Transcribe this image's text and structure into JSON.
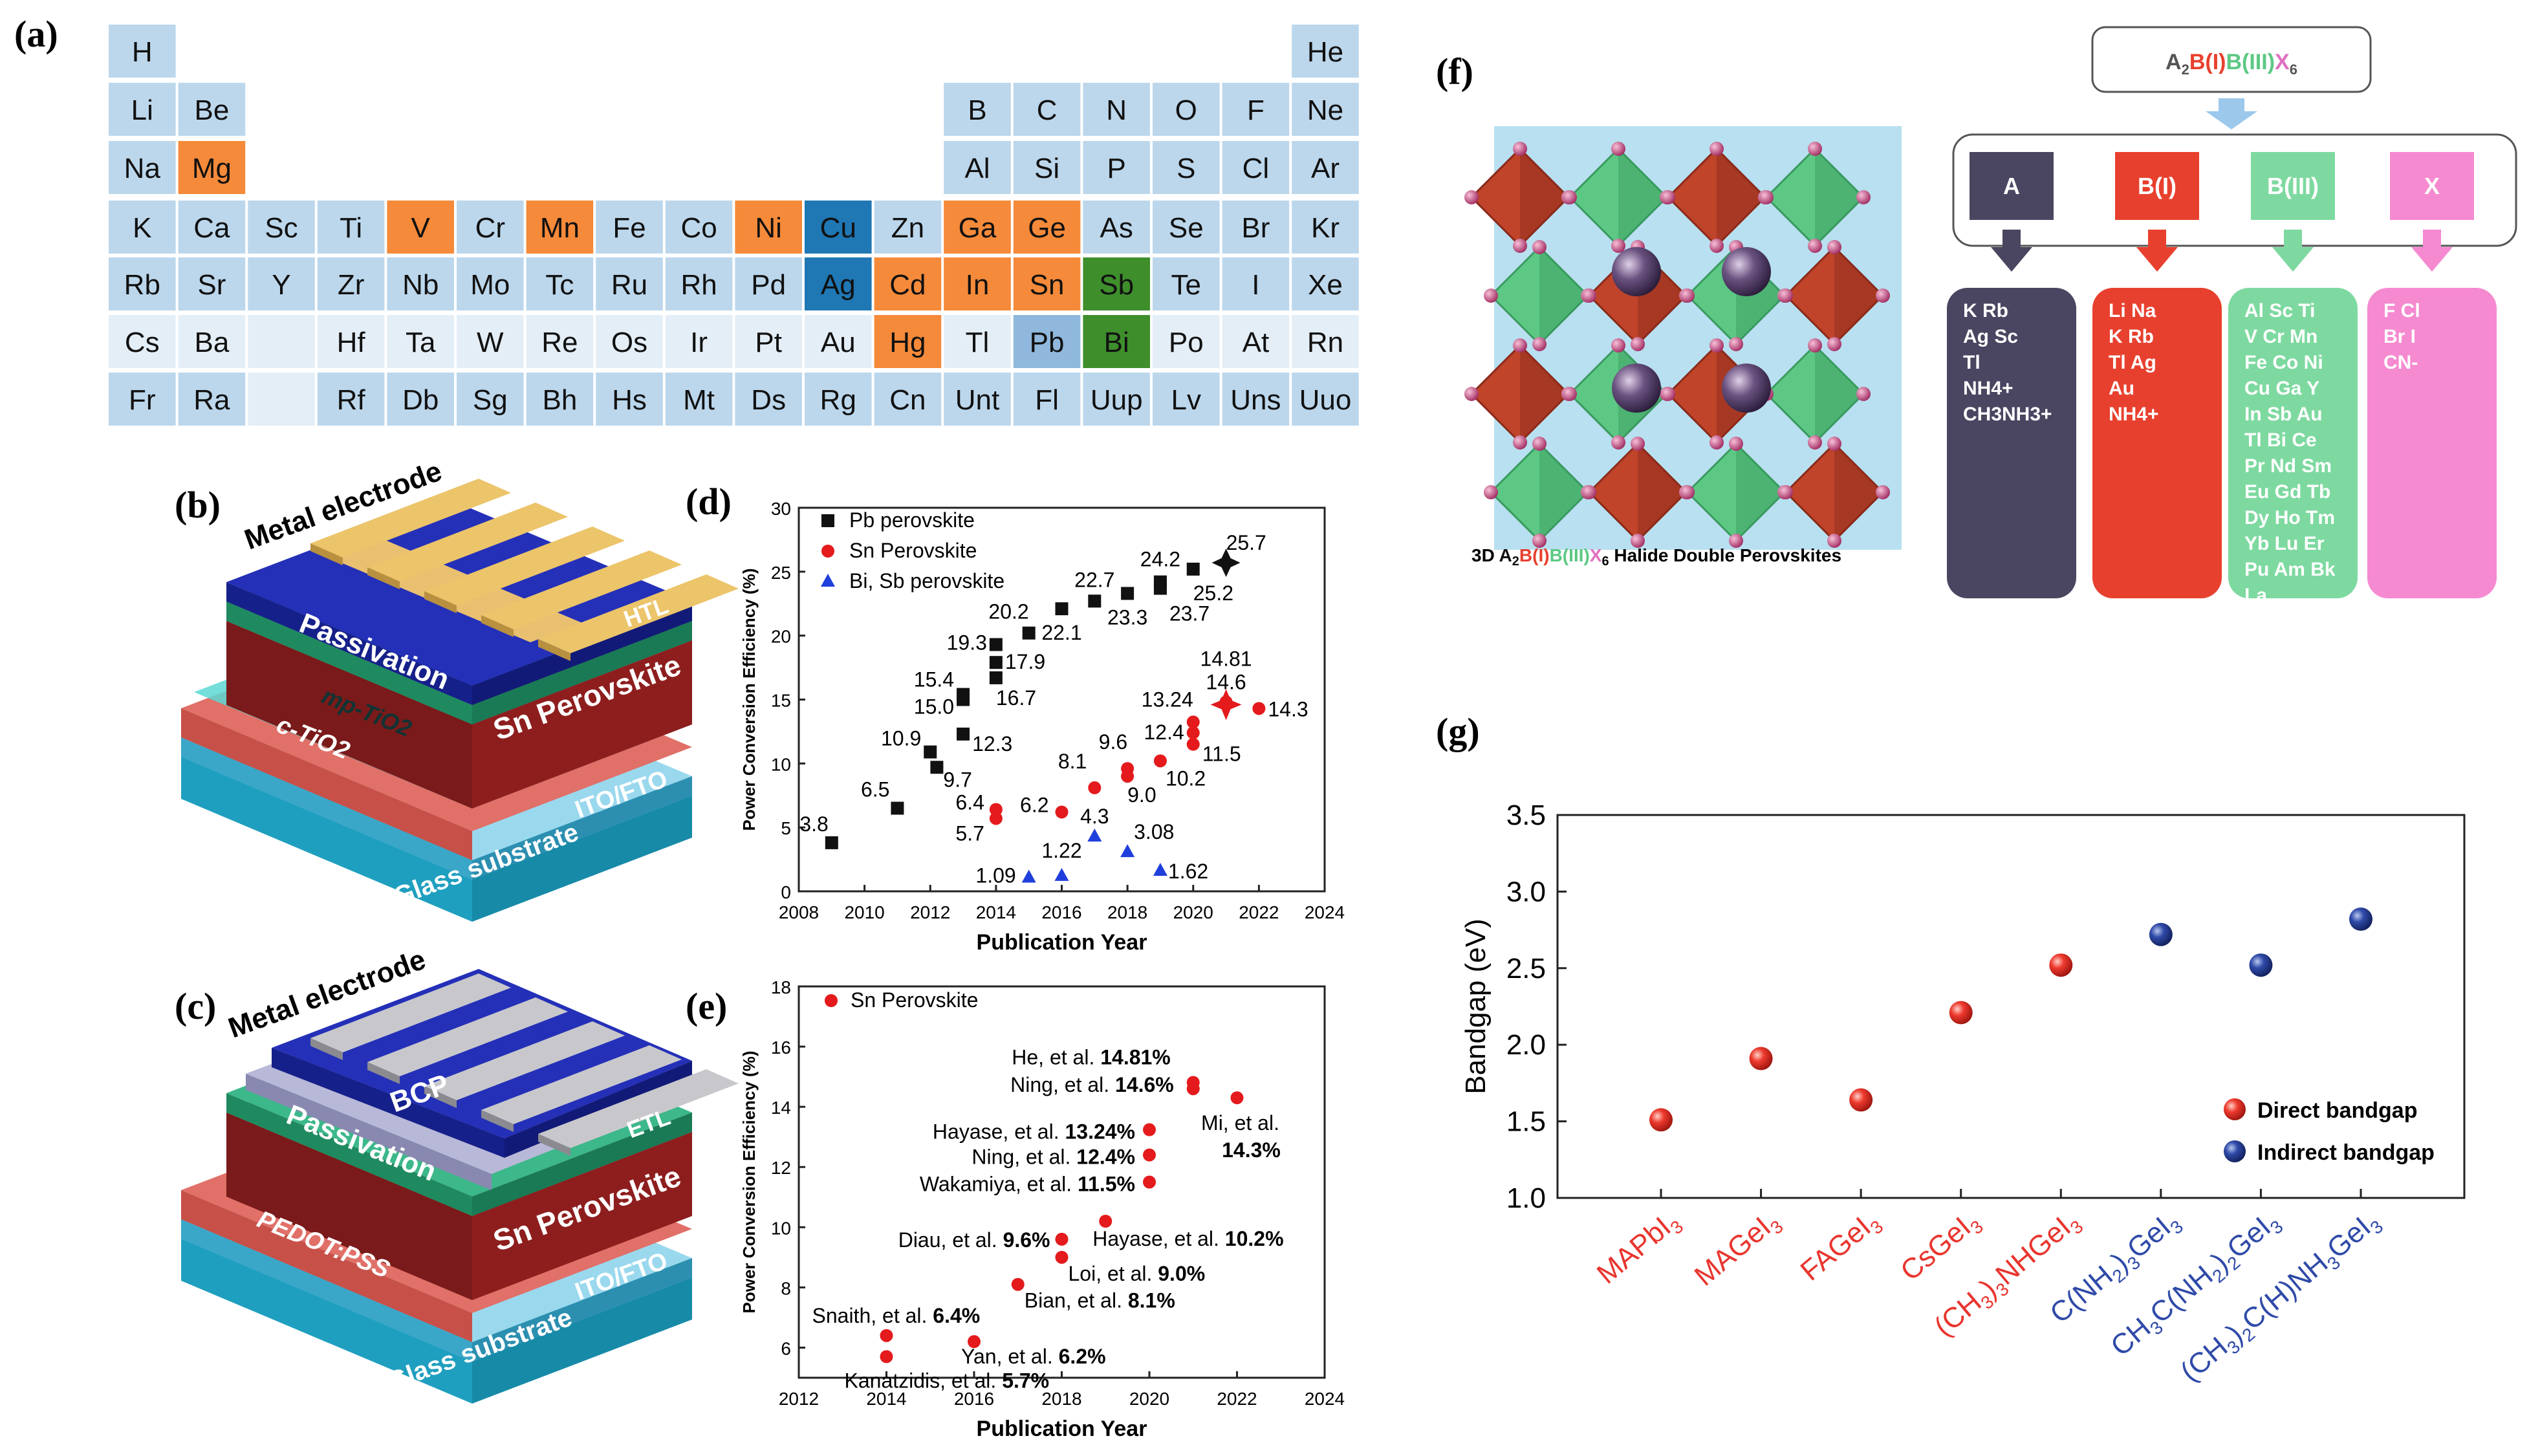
{
  "panel_labels": {
    "a": "(a)",
    "b": "(b)",
    "c": "(c)",
    "d": "(d)",
    "e": "(e)",
    "f": "(f)",
    "g": "(g)"
  },
  "periodic_table": {
    "rows": [
      [
        "H",
        "",
        "",
        "",
        "",
        "",
        "",
        "",
        "",
        "",
        "",
        "",
        "",
        "",
        "",
        "",
        "",
        "He"
      ],
      [
        "Li",
        "Be",
        "",
        "",
        "",
        "",
        "",
        "",
        "",
        "",
        "",
        "",
        "B",
        "C",
        "N",
        "O",
        "F",
        "Ne"
      ],
      [
        "Na",
        "Mg",
        "",
        "",
        "",
        "",
        "",
        "",
        "",
        "",
        "",
        "",
        "Al",
        "Si",
        "P",
        "S",
        "Cl",
        "Ar"
      ],
      [
        "K",
        "Ca",
        "Sc",
        "Ti",
        "V",
        "Cr",
        "Mn",
        "Fe",
        "Co",
        "Ni",
        "Cu",
        "Zn",
        "Ga",
        "Ge",
        "As",
        "Se",
        "Br",
        "Kr"
      ],
      [
        "Rb",
        "Sr",
        "Y",
        "Zr",
        "Nb",
        "Mo",
        "Tc",
        "Ru",
        "Rh",
        "Pd",
        "Ag",
        "Cd",
        "In",
        "Sn",
        "Sb",
        "Te",
        "I",
        "Xe"
      ],
      [
        "Cs",
        "Ba",
        "",
        "Hf",
        "Ta",
        "W",
        "Re",
        "Os",
        "Ir",
        "Pt",
        "Au",
        "Hg",
        "Tl",
        "Pb",
        "Bi",
        "Po",
        "At",
        "Rn"
      ],
      [
        "Fr",
        "Ra",
        "",
        "Rf",
        "Db",
        "Sg",
        "Bh",
        "Hs",
        "Mt",
        "Ds",
        "Rg",
        "Cn",
        "Unt",
        "Fl",
        "Uup",
        "Lv",
        "Uns",
        "Uuo"
      ]
    ],
    "empty_light_cells": [
      "5-2",
      "6-2"
    ],
    "highlight": {
      "orange": [
        "Mg",
        "V",
        "Mn",
        "Ni",
        "Ga",
        "Ge",
        "Cd",
        "In",
        "Sn",
        "Hg"
      ],
      "blue": [
        "Cu",
        "Ag"
      ],
      "green": [
        "Sb",
        "Bi"
      ],
      "pale": [
        "Cs",
        "Ba",
        "Hf",
        "Ta",
        "W",
        "Re",
        "Os",
        "Ir",
        "Pt",
        "Au",
        "Tl",
        "Po",
        "At",
        "Rn"
      ],
      "pb": [
        "Pb"
      ]
    },
    "colors": {
      "base": "#bcd7ec",
      "pale": "#e4eef7",
      "orange": "#f58a3a",
      "blue": "#1f77b4",
      "green": "#3e8e2c",
      "pb": "#8fb8dc"
    }
  },
  "device_b": {
    "layers": [
      "Metal electrode",
      "HTL",
      "Passivation",
      "Sn Perovskite",
      "mp-TiO2",
      "c-TiO2",
      "ITO/FTO",
      "Glass substrate"
    ]
  },
  "device_c": {
    "layers": [
      "Metal electrode",
      "BCP",
      "ETL",
      "Passivation",
      "Sn Perovskite",
      "PEDOT:PSS",
      "ITO/FTO",
      "Glass substrate"
    ]
  },
  "chart_data": [
    {
      "panel": "d",
      "type": "scatter",
      "xlabel": "Publication Year",
      "ylabel": "Power Conversion Efficiency (%)",
      "xlim": [
        2008,
        2024
      ],
      "ylim": [
        0,
        30
      ],
      "xticks": [
        2008,
        2010,
        2012,
        2014,
        2016,
        2018,
        2020,
        2022,
        2024
      ],
      "yticks": [
        0,
        5,
        10,
        15,
        20,
        25,
        30
      ],
      "legend_position": "top-left",
      "series": [
        {
          "name": "Pb perovskite",
          "color": "#111111",
          "marker": "square",
          "points": [
            {
              "x": 2009,
              "y": 3.8,
              "label": "3.8"
            },
            {
              "x": 2011,
              "y": 6.5,
              "label": "6.5"
            },
            {
              "x": 2012,
              "y": 10.9,
              "label": "10.9"
            },
            {
              "x": 2012.2,
              "y": 9.7,
              "label": "9.7"
            },
            {
              "x": 2013,
              "y": 15.4,
              "label": "15.4"
            },
            {
              "x": 2013,
              "y": 15.0,
              "label": "15.0"
            },
            {
              "x": 2013,
              "y": 12.3,
              "label": "12.3"
            },
            {
              "x": 2014,
              "y": 19.3,
              "label": "19.3"
            },
            {
              "x": 2014,
              "y": 17.9,
              "label": "17.9"
            },
            {
              "x": 2014,
              "y": 16.7,
              "label": "16.7"
            },
            {
              "x": 2015,
              "y": 20.2,
              "label": "20.2"
            },
            {
              "x": 2016,
              "y": 22.1,
              "label": "22.1"
            },
            {
              "x": 2017,
              "y": 22.7,
              "label": "22.7"
            },
            {
              "x": 2018,
              "y": 23.3,
              "label": "23.3"
            },
            {
              "x": 2019,
              "y": 24.2,
              "label": "24.2"
            },
            {
              "x": 2019,
              "y": 23.7,
              "label": "23.7"
            },
            {
              "x": 2020,
              "y": 25.2,
              "label": "25.2"
            },
            {
              "x": 2021,
              "y": 25.7,
              "label": "25.7"
            }
          ]
        },
        {
          "name": "Sn Perovskite",
          "color": "#e41a1c",
          "marker": "circle",
          "points": [
            {
              "x": 2014,
              "y": 6.4,
              "label": "6.4"
            },
            {
              "x": 2014,
              "y": 5.7,
              "label": "5.7"
            },
            {
              "x": 2016,
              "y": 6.2,
              "label": "6.2"
            },
            {
              "x": 2017,
              "y": 8.1,
              "label": "8.1"
            },
            {
              "x": 2018,
              "y": 9.6,
              "label": "9.6"
            },
            {
              "x": 2018,
              "y": 9.0,
              "label": "9.0"
            },
            {
              "x": 2019,
              "y": 10.2,
              "label": "10.2"
            },
            {
              "x": 2020,
              "y": 13.24,
              "label": "13.24"
            },
            {
              "x": 2020,
              "y": 12.4,
              "label": "12.4"
            },
            {
              "x": 2020,
              "y": 11.5,
              "label": "11.5"
            },
            {
              "x": 2021,
              "y": 14.81,
              "label": "14.81"
            },
            {
              "x": 2021,
              "y": 14.6,
              "label": "14.6"
            },
            {
              "x": 2022,
              "y": 14.3,
              "label": "14.3"
            }
          ]
        },
        {
          "name": "Bi, Sb perovskite",
          "color": "#1f3fdc",
          "marker": "triangle",
          "points": [
            {
              "x": 2015,
              "y": 1.09,
              "label": "1.09"
            },
            {
              "x": 2016,
              "y": 1.22,
              "label": "1.22"
            },
            {
              "x": 2017,
              "y": 4.3,
              "label": "4.3"
            },
            {
              "x": 2018,
              "y": 3.08,
              "label": "3.08"
            },
            {
              "x": 2019,
              "y": 1.62,
              "label": "1.62"
            }
          ]
        }
      ]
    },
    {
      "panel": "e",
      "type": "scatter",
      "xlabel": "Publication Year",
      "ylabel": "Power Conversion Efficiency (%)",
      "xlim": [
        2012,
        2024
      ],
      "ylim": [
        5,
        18
      ],
      "xticks": [
        2012,
        2014,
        2016,
        2018,
        2020,
        2022,
        2024
      ],
      "yticks": [
        6,
        8,
        10,
        12,
        14,
        16,
        18
      ],
      "legend_position": "top-left",
      "series": [
        {
          "name": "Sn Perovskite",
          "color": "#e41a1c",
          "marker": "circle",
          "points": [
            {
              "x": 2014,
              "y": 6.4,
              "author": "Snaith, et al.",
              "value": "6.4%"
            },
            {
              "x": 2014,
              "y": 5.7,
              "author": "Kanatzidis, et al.",
              "value": "5.7%"
            },
            {
              "x": 2016,
              "y": 6.2,
              "author": "Yan, et al.",
              "value": "6.2%"
            },
            {
              "x": 2017,
              "y": 8.1,
              "author": "Bian, et al.",
              "value": "8.1%"
            },
            {
              "x": 2018,
              "y": 9.6,
              "author": "Diau, et al.",
              "value": "9.6%"
            },
            {
              "x": 2018,
              "y": 9.0,
              "author": "Loi, et al.",
              "value": "9.0%"
            },
            {
              "x": 2019,
              "y": 10.2,
              "author": "Hayase, et al.",
              "value": "10.2%"
            },
            {
              "x": 2020,
              "y": 13.24,
              "author": "Hayase, et al.",
              "value": "13.24%"
            },
            {
              "x": 2020,
              "y": 12.4,
              "author": "Ning, et al.",
              "value": "12.4%"
            },
            {
              "x": 2020,
              "y": 11.5,
              "author": "Wakamiya, et al.",
              "value": "11.5%"
            },
            {
              "x": 2021,
              "y": 14.81,
              "author": "He, et al.",
              "value": "14.81%"
            },
            {
              "x": 2021,
              "y": 14.6,
              "author": "Ning, et al.",
              "value": "14.6%"
            },
            {
              "x": 2022,
              "y": 14.3,
              "author": "Mi, et al.",
              "value": "14.3%"
            }
          ]
        }
      ]
    },
    {
      "panel": "g",
      "type": "scatter",
      "xlabel": "",
      "ylabel": "Bandgap (eV)",
      "ylim": [
        1.0,
        3.5
      ],
      "yticks": [
        1.0,
        1.5,
        2.0,
        2.5,
        3.0,
        3.5
      ],
      "legend_position": "bottom-right",
      "categories": [
        "MAPbI3",
        "MAGeI3",
        "FAGeI3",
        "CsGeI3",
        "(CH3)3NHGeI3",
        "C(NH2)3GeI3",
        "CH3C(NH2)2GeI3",
        "(CH3)2C(H)NH3GeI3"
      ],
      "category_colors": [
        "#e8352e",
        "#e8352e",
        "#e8352e",
        "#e8352e",
        "#e8352e",
        "#2f4aa8",
        "#2f4aa8",
        "#2f4aa8"
      ],
      "series": [
        {
          "name": "Direct bandgap",
          "color": "#e8352e",
          "points": [
            {
              "x": "MAPbI3",
              "y": 1.51
            },
            {
              "x": "MAGeI3",
              "y": 1.91
            },
            {
              "x": "FAGeI3",
              "y": 1.64
            },
            {
              "x": "CsGeI3",
              "y": 2.21
            },
            {
              "x": "(CH3)3NHGeI3",
              "y": 2.52
            }
          ]
        },
        {
          "name": "Indirect bandgap",
          "color": "#2f4aa8",
          "points": [
            {
              "x": "C(NH2)3GeI3",
              "y": 2.72
            },
            {
              "x": "CH3C(NH2)2GeI3",
              "y": 2.52
            },
            {
              "x": "(CH3)2C(H)NH3GeI3",
              "y": 2.82
            }
          ]
        }
      ]
    }
  ],
  "panel_f": {
    "formula": "A2B(I)B(III)X6",
    "formula_parts": {
      "A": "A",
      "A_sub": "2",
      "BI": "B(I)",
      "BIII": "B(III)",
      "X": "X",
      "X_sub": "6"
    },
    "caption_prefix": "3D ",
    "caption_suffix": " Halide Double Perovskites",
    "columns": [
      {
        "header": "A",
        "color": "#4a4560",
        "items": [
          [
            "K",
            "Rb"
          ],
          [
            "Ag",
            "Sc"
          ],
          [
            "Tl"
          ],
          [
            "NH4+"
          ],
          [
            "CH3NH3+"
          ]
        ]
      },
      {
        "header": "B(I)",
        "color": "#e8402e",
        "items": [
          [
            "Li",
            "Na"
          ],
          [
            "K",
            "Rb"
          ],
          [
            "Tl",
            "Ag"
          ],
          [
            "Au"
          ],
          [
            "NH4+"
          ]
        ]
      },
      {
        "header": "B(III)",
        "color": "#7ed9a0",
        "items": [
          [
            "Al",
            "Sc",
            "Ti"
          ],
          [
            "V",
            "Cr",
            "Mn"
          ],
          [
            "Fe",
            "Co",
            "Ni"
          ],
          [
            "Cu",
            "Ga",
            "Y"
          ],
          [
            "In",
            "Sb",
            "Au"
          ],
          [
            "Tl",
            "Bi",
            "Ce"
          ],
          [
            "Pr",
            "Nd",
            "Sm"
          ],
          [
            "Eu",
            "Gd",
            "Tb"
          ],
          [
            "Dy",
            "Ho",
            "Tm"
          ],
          [
            "Yb",
            "Lu",
            "Er"
          ],
          [
            "Pu",
            "Am",
            "Bk"
          ],
          [
            "La"
          ]
        ]
      },
      {
        "header": "X",
        "color": "#f58ad0",
        "items": [
          [
            "F",
            "Cl"
          ],
          [
            "Br",
            "I"
          ],
          [
            "CN-"
          ]
        ]
      }
    ]
  }
}
